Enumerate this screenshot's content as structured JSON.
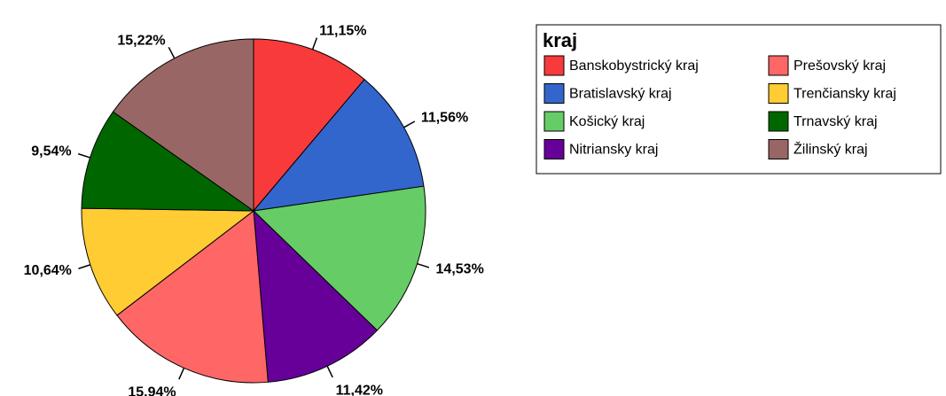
{
  "chart_data": {
    "type": "pie",
    "legend_title": "kraj",
    "categories": [
      "Banskobystrický kraj",
      "Bratislavský kraj",
      "Košický kraj",
      "Nitriansky kraj",
      "Prešovský kraj",
      "Trenčiansky kraj",
      "Trnavský kraj",
      "Žilinský kraj"
    ],
    "values": [
      11.15,
      11.56,
      14.53,
      11.42,
      15.94,
      10.64,
      9.54,
      15.22
    ],
    "value_labels": [
      "11,15%",
      "11,56%",
      "14,53%",
      "11,42%",
      "15,94%",
      "10,64%",
      "9,54%",
      "15,22%"
    ],
    "colors": [
      "#f83a3a",
      "#3366cc",
      "#66cc66",
      "#660099",
      "#ff6666",
      "#ffcc33",
      "#006600",
      "#996666"
    ],
    "legend": "top-right"
  }
}
